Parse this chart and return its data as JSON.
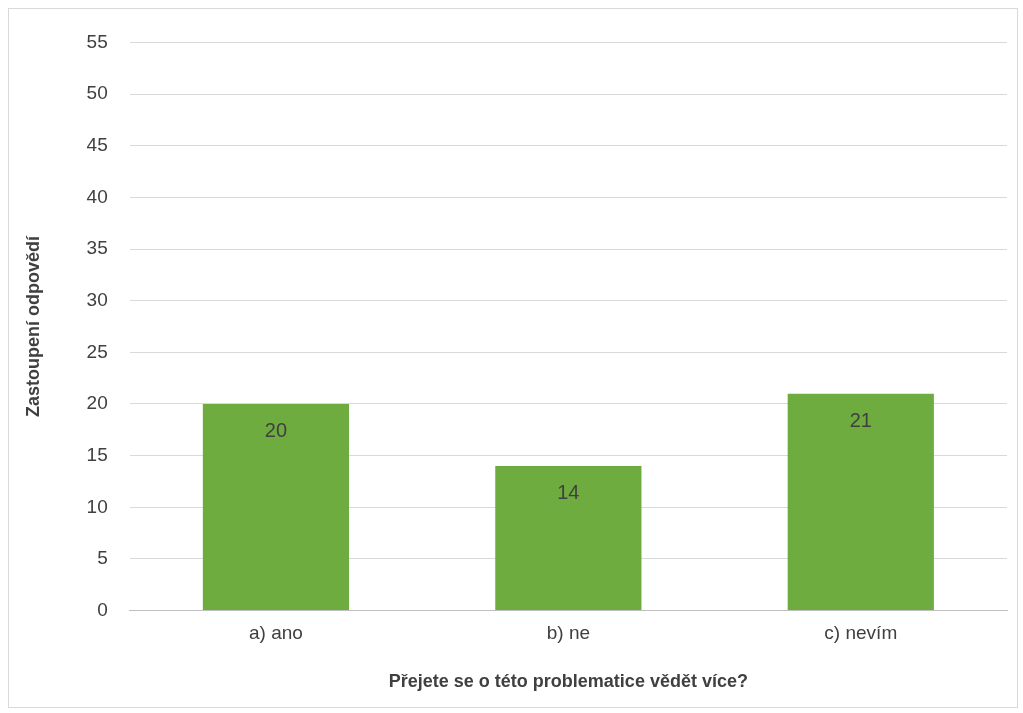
{
  "chart_data": {
    "type": "bar",
    "xlabel": "Přejete se o této problematice vědět více?",
    "ylabel": "Zastoupení odpovědí",
    "categories": [
      "a) ano",
      "b) ne",
      "c) nevím"
    ],
    "values": [
      20,
      14,
      21
    ],
    "color": "#6eac3f",
    "ylim": [
      0,
      55
    ],
    "yticks": [
      0,
      5,
      10,
      15,
      20,
      25,
      30,
      35,
      40,
      45,
      50,
      55
    ],
    "grid": "y",
    "data_labels": true,
    "legend": false
  }
}
